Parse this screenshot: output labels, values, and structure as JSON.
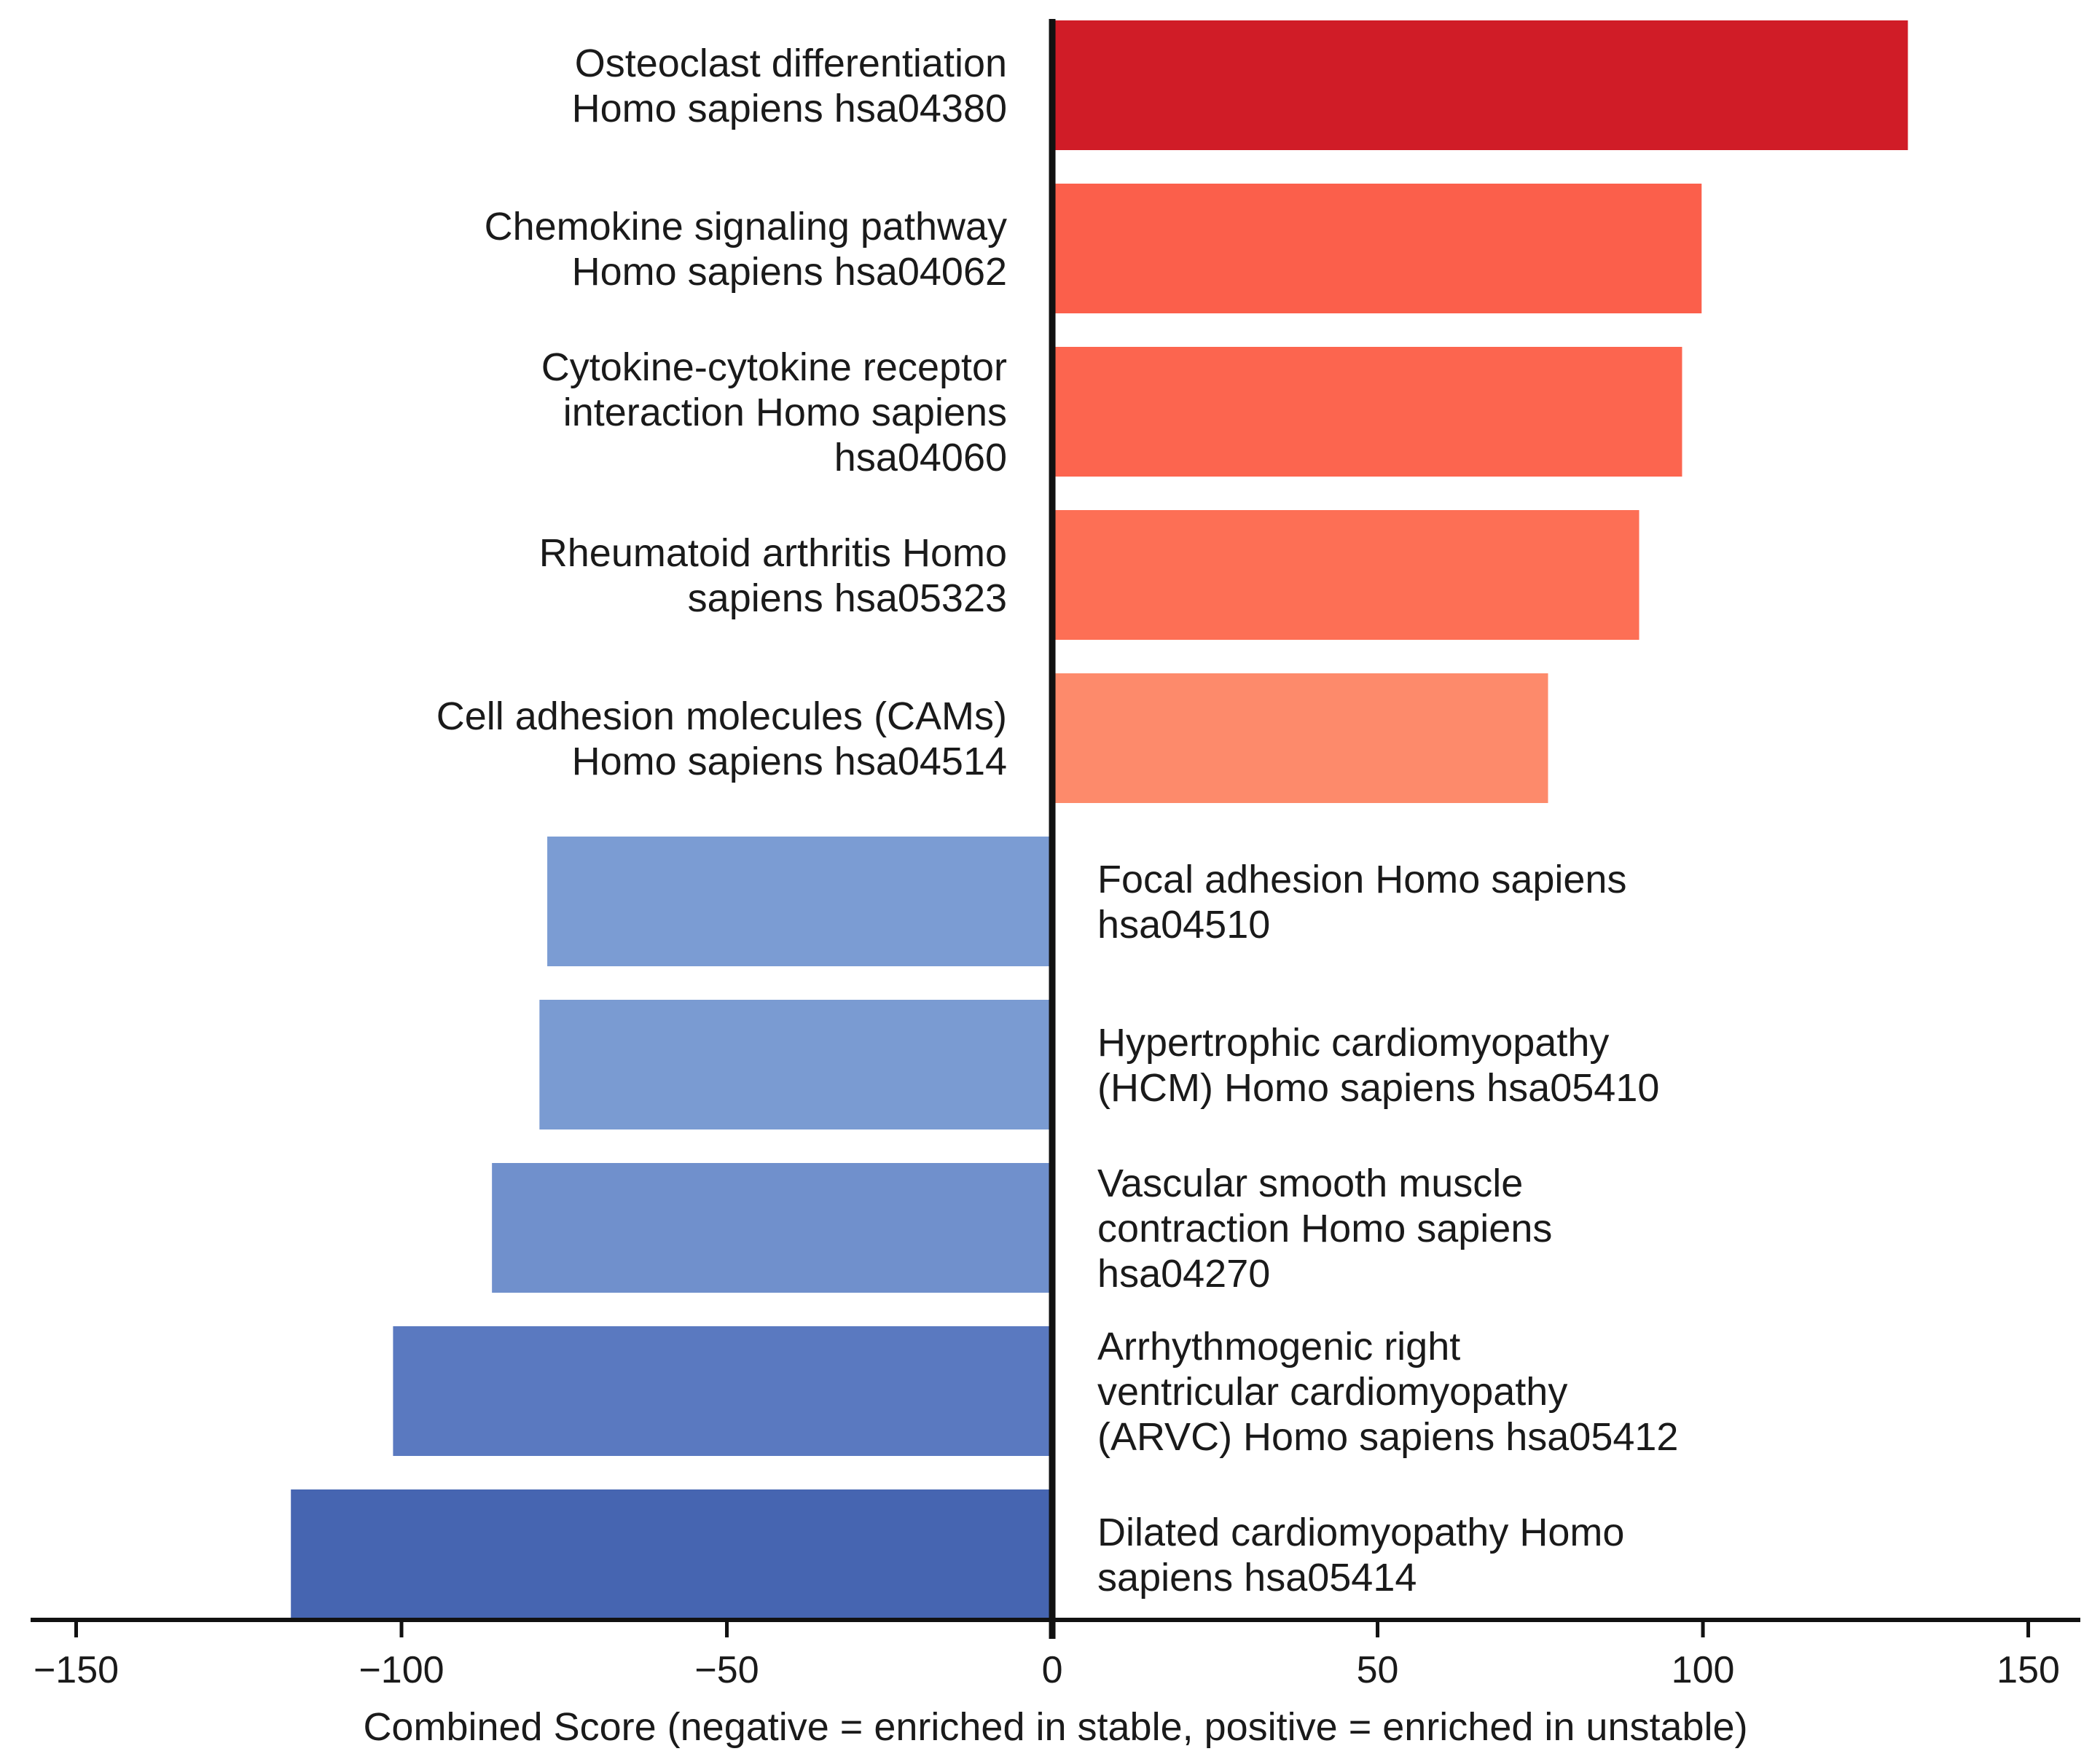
{
  "chart_data": {
    "type": "bar",
    "orientation": "horizontal",
    "title": "",
    "xlabel": "Combined Score (negative = enriched in stable, positive = enriched in unstable)",
    "ylabel": "",
    "xlim": [
      -157,
      158
    ],
    "xticks": [
      -150,
      -100,
      -50,
      0,
      50,
      100,
      150
    ],
    "xtick_labels": [
      "−150",
      "−100",
      "−50",
      "0",
      "50",
      "100",
      "150"
    ],
    "grid": false,
    "legend": "none",
    "categories": [
      "Osteoclast differentiation Homo sapiens hsa04380",
      "Chemokine signaling pathway Homo sapiens hsa04062",
      "Cytokine-cytokine receptor interaction Homo sapiens hsa04060",
      "Rheumatoid arthritis Homo sapiens hsa05323",
      "Cell adhesion molecules (CAMs) Homo sapiens hsa04514",
      "Focal adhesion Homo sapiens hsa04510",
      "Hypertrophic cardiomyopathy (HCM) Homo sapiens hsa05410",
      "Vascular smooth muscle contraction Homo sapiens hsa04270",
      "Arrhythmogenic right ventricular cardiomyopathy (ARVC) Homo sapiens hsa05412",
      "Dilated cardiomyopathy Homo sapiens hsa05414"
    ],
    "category_lines": [
      [
        "Osteoclast differentiation",
        "Homo sapiens hsa04380"
      ],
      [
        "Chemokine signaling pathway",
        "Homo sapiens hsa04062"
      ],
      [
        "Cytokine-cytokine receptor",
        "interaction Homo sapiens",
        "hsa04060"
      ],
      [
        "Rheumatoid arthritis Homo",
        "sapiens hsa05323"
      ],
      [
        "Cell adhesion molecules (CAMs)",
        "Homo sapiens hsa04514"
      ],
      [
        "Focal adhesion Homo sapiens",
        "hsa04510"
      ],
      [
        "Hypertrophic cardiomyopathy",
        "(HCM) Homo sapiens hsa05410"
      ],
      [
        "Vascular smooth muscle",
        "contraction Homo sapiens",
        "hsa04270"
      ],
      [
        "Arrhythmogenic right",
        "ventricular cardiomyopathy",
        "(ARVC) Homo sapiens hsa05412"
      ],
      [
        "Dilated cardiomyopathy Homo",
        "sapiens hsa05414"
      ]
    ],
    "values": [
      131.5,
      99.8,
      96.8,
      90.2,
      76.2,
      -77.6,
      -78.8,
      -86.1,
      -101.3,
      -117.0
    ],
    "colors": [
      "#d01c27",
      "#fb5f4b",
      "#fc654f",
      "#fd6f55",
      "#fd8a6b",
      "#7b9cd3",
      "#7a9bd2",
      "#7090cc",
      "#5a79c0",
      "#4665b1"
    ]
  }
}
